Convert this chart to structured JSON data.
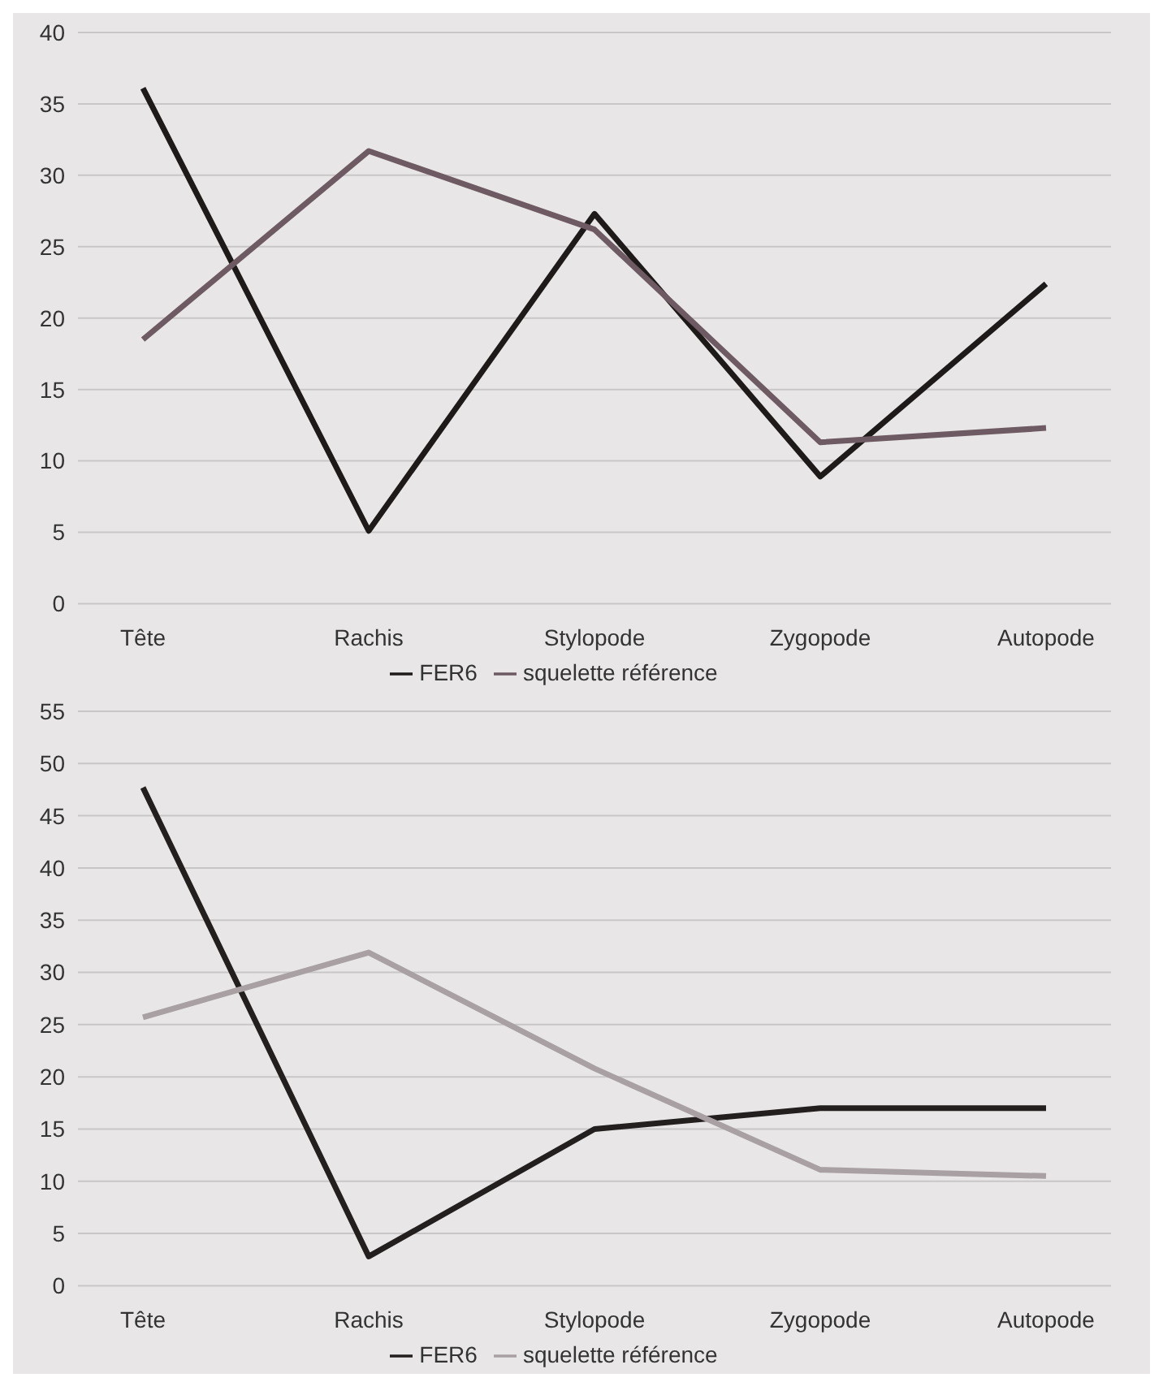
{
  "chart_data": [
    {
      "type": "line",
      "categories": [
        "Tête",
        "Rachis",
        "Stylopode",
        "Zygopode",
        "Autopode"
      ],
      "series": [
        {
          "name": "FER6",
          "color": "#1e1a1a",
          "values": [
            36.1,
            5.1,
            27.3,
            8.9,
            22.4
          ]
        },
        {
          "name": "squelette référence",
          "color": "#6e5a62",
          "values": [
            18.5,
            31.7,
            26.2,
            11.3,
            12.3
          ]
        }
      ],
      "ylim": [
        0,
        40
      ],
      "yticks": [
        0,
        5,
        10,
        15,
        20,
        25,
        30,
        35,
        40
      ],
      "grid": "y",
      "legend": "bottom"
    },
    {
      "type": "line",
      "categories": [
        "Tête",
        "Rachis",
        "Stylopode",
        "Zygopode",
        "Autopode"
      ],
      "series": [
        {
          "name": "FER6",
          "color": "#231f1f",
          "values": [
            47.7,
            2.8,
            15,
            17,
            17
          ]
        },
        {
          "name": "squelette référence",
          "color": "#a8a0a3",
          "values": [
            25.7,
            31.9,
            20.8,
            11.1,
            10.5
          ]
        }
      ],
      "ylim": [
        0,
        55
      ],
      "yticks": [
        0,
        5,
        10,
        15,
        20,
        25,
        30,
        35,
        40,
        45,
        50,
        55
      ],
      "grid": "y",
      "legend": "bottom"
    }
  ]
}
